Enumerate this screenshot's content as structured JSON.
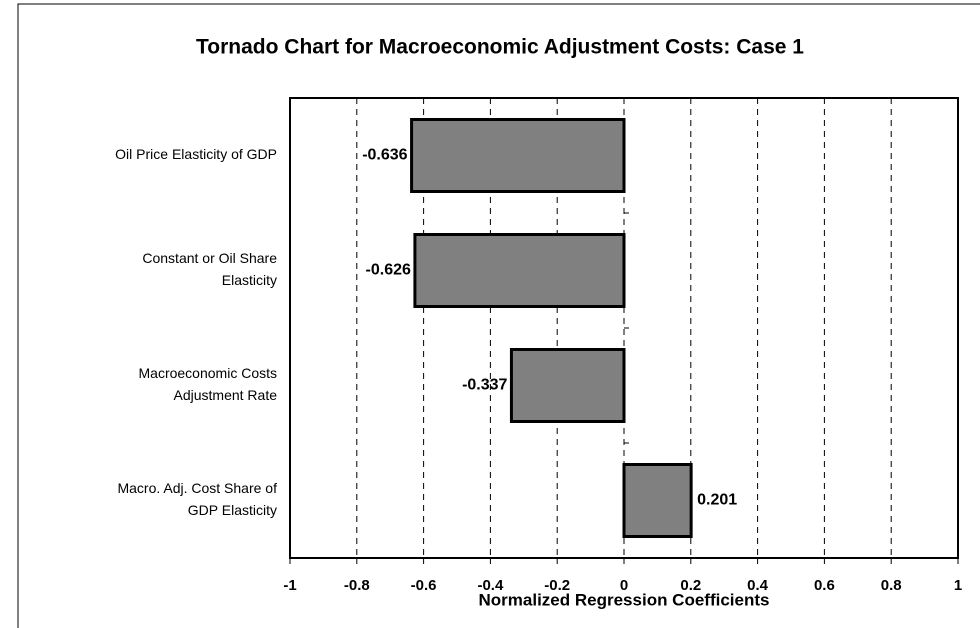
{
  "chart_data": {
    "type": "bar",
    "orientation": "horizontal",
    "title": "Tornado Chart for Macroeconomic Adjustment Costs: Case 1",
    "xlabel": "Normalized Regression Coefficients",
    "categories": [
      "Oil Price Elasticity of GDP",
      "Constant or Oil Share\nElasticity",
      "Macroeconomic Costs\nAdjustment Rate",
      "Macro. Adj. Cost Share of\nGDP Elasticity"
    ],
    "values": [
      -0.636,
      -0.626,
      -0.337,
      0.201
    ],
    "color": "#808080",
    "xlim": [
      -1,
      1
    ],
    "xticks": [
      -1,
      -0.8,
      -0.6,
      -0.4,
      -0.2,
      0,
      0.2,
      0.4,
      0.6,
      0.8,
      1
    ],
    "grid": true
  }
}
